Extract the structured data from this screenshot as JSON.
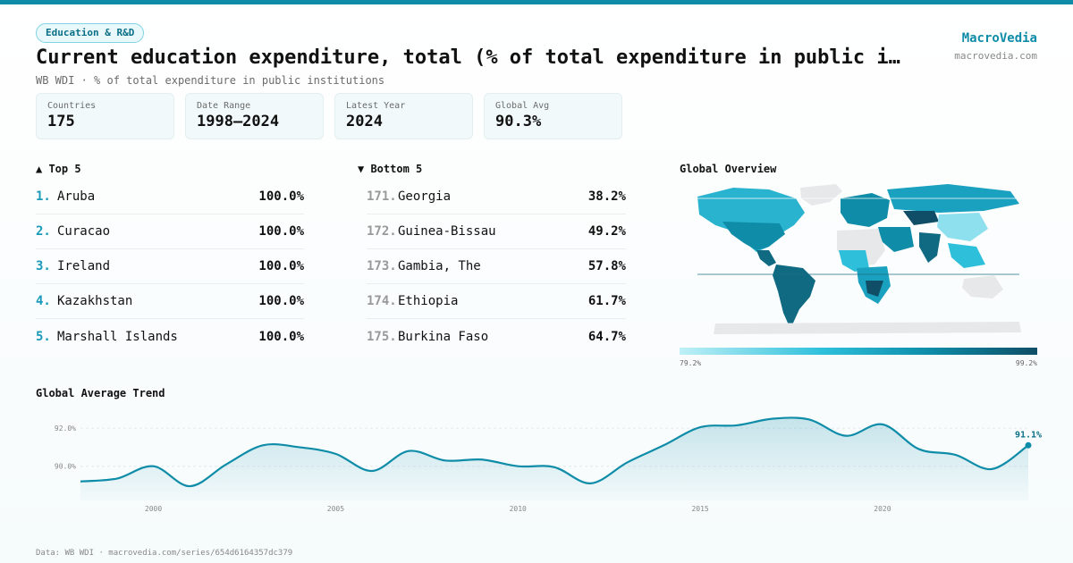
{
  "header": {
    "category": "Education & R&D",
    "title": "Current education expenditure, total (% of total expenditure in public i…",
    "subtitle": "WB WDI · % of total expenditure in public institutions",
    "brand": "MacroVedia",
    "brand_url": "macrovedia.com"
  },
  "stats": [
    {
      "label": "Countries",
      "value": "175"
    },
    {
      "label": "Date Range",
      "value": "1998–2024"
    },
    {
      "label": "Latest Year",
      "value": "2024"
    },
    {
      "label": "Global Avg",
      "value": "90.3%"
    }
  ],
  "top5": {
    "title": "▲ Top 5",
    "items": [
      {
        "rank": "1.",
        "name": "Aruba",
        "value": "100.0%"
      },
      {
        "rank": "2.",
        "name": "Curacao",
        "value": "100.0%"
      },
      {
        "rank": "3.",
        "name": "Ireland",
        "value": "100.0%"
      },
      {
        "rank": "4.",
        "name": "Kazakhstan",
        "value": "100.0%"
      },
      {
        "rank": "5.",
        "name": "Marshall Islands",
        "value": "100.0%"
      }
    ]
  },
  "bottom5": {
    "title": "▼ Bottom 5",
    "items": [
      {
        "rank": "171.",
        "name": "Georgia",
        "value": "38.2%"
      },
      {
        "rank": "172.",
        "name": "Guinea-Bissau",
        "value": "49.2%"
      },
      {
        "rank": "173.",
        "name": "Gambia, The",
        "value": "57.8%"
      },
      {
        "rank": "174.",
        "name": "Ethiopia",
        "value": "61.7%"
      },
      {
        "rank": "175.",
        "name": "Burkina Faso",
        "value": "64.7%"
      }
    ]
  },
  "map": {
    "title": "Global Overview",
    "scale_min": "79.2%",
    "scale_max": "99.2%",
    "colors": {
      "low": "#bff0f7",
      "mid": "#0e8ca8",
      "high": "#0f4e66",
      "nodata": "#e6e8ea"
    }
  },
  "trend_title": "Global Average Trend",
  "footer": "Data: WB WDI · macrovedia.com/series/654d6164357dc379",
  "chart_data": {
    "type": "line",
    "title": "Global Average Trend",
    "xlabel": "",
    "ylabel": "",
    "x_ticks": [
      2000,
      2005,
      2010,
      2015,
      2020
    ],
    "y_ticks": [
      90.0,
      92.0
    ],
    "y_tick_labels": [
      "90.0%",
      "92.0%"
    ],
    "ylim": [
      88.2,
      92.9
    ],
    "xlim": [
      1998,
      2024
    ],
    "color": "#0e8ca8",
    "last_label": "91.1%",
    "x": [
      1998,
      1999,
      2000,
      2001,
      2002,
      2003,
      2004,
      2005,
      2006,
      2007,
      2008,
      2009,
      2010,
      2011,
      2012,
      2013,
      2014,
      2015,
      2016,
      2017,
      2018,
      2019,
      2020,
      2021,
      2022,
      2023,
      2024
    ],
    "values": [
      89.2,
      89.35,
      90.0,
      88.95,
      90.1,
      91.1,
      91.0,
      90.65,
      89.75,
      90.8,
      90.3,
      90.35,
      90.0,
      89.95,
      89.1,
      90.2,
      91.1,
      92.05,
      92.15,
      92.5,
      92.45,
      91.6,
      92.2,
      90.9,
      90.6,
      89.85,
      91.1
    ]
  }
}
